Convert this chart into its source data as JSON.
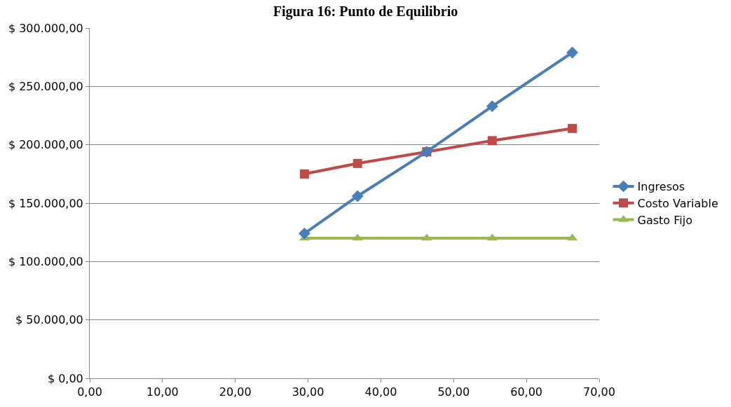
{
  "chart_data": {
    "type": "line",
    "title": "Figura 16: Punto de Equilibrio",
    "x": [
      29.5,
      36.8,
      46.3,
      55.3,
      66.3
    ],
    "series": [
      {
        "name": "Ingresos",
        "color": "#4a7ebb",
        "marker": "diamond",
        "values": [
          124000,
          156000,
          194000,
          233000,
          279000
        ]
      },
      {
        "name": "Costo Variable",
        "color": "#be4b48",
        "marker": "square",
        "values": [
          175000,
          184000,
          194000,
          203500,
          214000
        ]
      },
      {
        "name": "Gasto Fijo",
        "color": "#98b954",
        "marker": "triangle",
        "values": [
          120000,
          120000,
          120000,
          120000,
          120000
        ]
      }
    ],
    "xlim": [
      0,
      70
    ],
    "xticks": [
      {
        "value": 0,
        "label": "0,00"
      },
      {
        "value": 10,
        "label": "10,00"
      },
      {
        "value": 20,
        "label": "20,00"
      },
      {
        "value": 30,
        "label": "30,00"
      },
      {
        "value": 40,
        "label": "40,00"
      },
      {
        "value": 50,
        "label": "50,00"
      },
      {
        "value": 60,
        "label": "60,00"
      },
      {
        "value": 70,
        "label": "70,00"
      }
    ],
    "ylim": [
      0,
      300000
    ],
    "yticks": [
      {
        "value": 0,
        "label": "$ 0,00"
      },
      {
        "value": 50000,
        "label": "$ 50.000,00"
      },
      {
        "value": 100000,
        "label": "$ 100.000,00"
      },
      {
        "value": 150000,
        "label": "$ 150.000,00"
      },
      {
        "value": 200000,
        "label": "$ 200.000,00"
      },
      {
        "value": 250000,
        "label": "$ 250.000,00"
      },
      {
        "value": 300000,
        "label": "$ 300.000,00"
      }
    ],
    "grid": "y",
    "legend": "right",
    "line_style": "solid"
  }
}
